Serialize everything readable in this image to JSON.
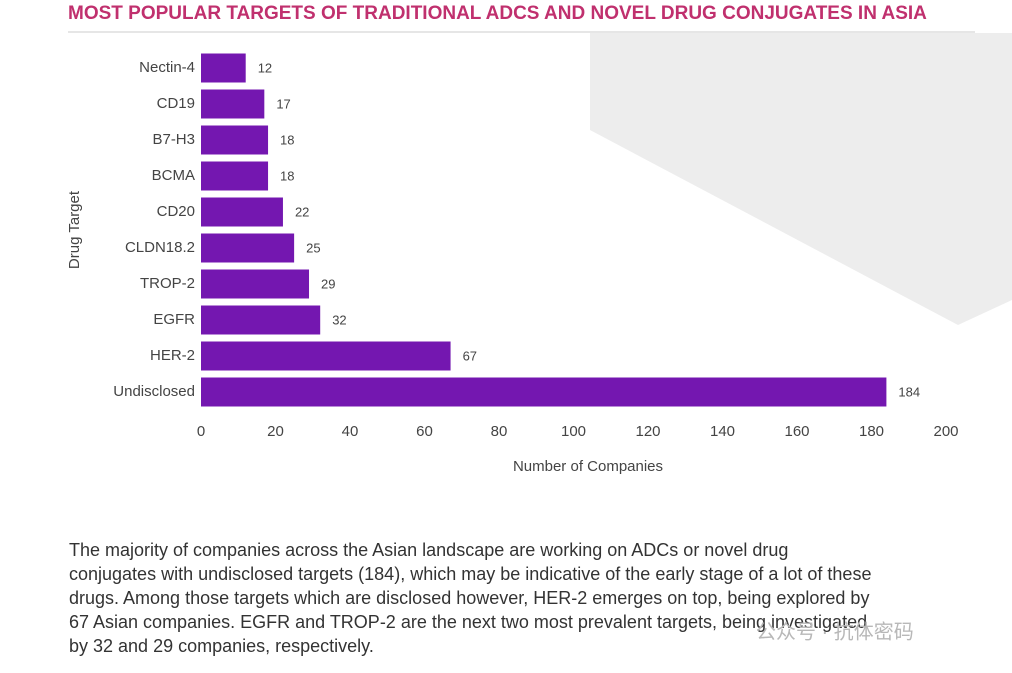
{
  "chart_data": {
    "type": "bar",
    "orientation": "horizontal",
    "title": "MOST POPULAR TARGETS OF TRADITIONAL ADCS AND NOVEL DRUG CONJUGATES IN ASIA",
    "categories": [
      "Nectin-4",
      "CD19",
      "B7-H3",
      "BCMA",
      "CD20",
      "CLDN18.2",
      "TROP-2",
      "EGFR",
      "HER-2",
      "Undisclosed"
    ],
    "values": [
      12,
      17,
      18,
      18,
      22,
      25,
      29,
      32,
      67,
      184
    ],
    "color": "#7417b0",
    "xlim": [
      0,
      200
    ],
    "xticks": [
      0,
      20,
      40,
      60,
      80,
      100,
      120,
      140,
      160,
      180,
      200
    ],
    "x_label": "Number of Companies",
    "y_label": "Drug Target",
    "grid": false
  },
  "text": {
    "paragraph": [
      "The majority of companies across the Asian landscape  are working on ADCs or novel drug",
      "conjugates with undisclosed targets (184), which may be indicative of the early stage of a lot of these",
      "drugs. Among those targets which are disclosed however, HER-2 emerges on top, being explored by",
      "67 Asian companies. EGFR and TROP-2 are the next two most prevalent targets, being investigated",
      "by 32 and 29 companies, respectively."
    ],
    "watermark": "公众号 · 抗体密码"
  }
}
